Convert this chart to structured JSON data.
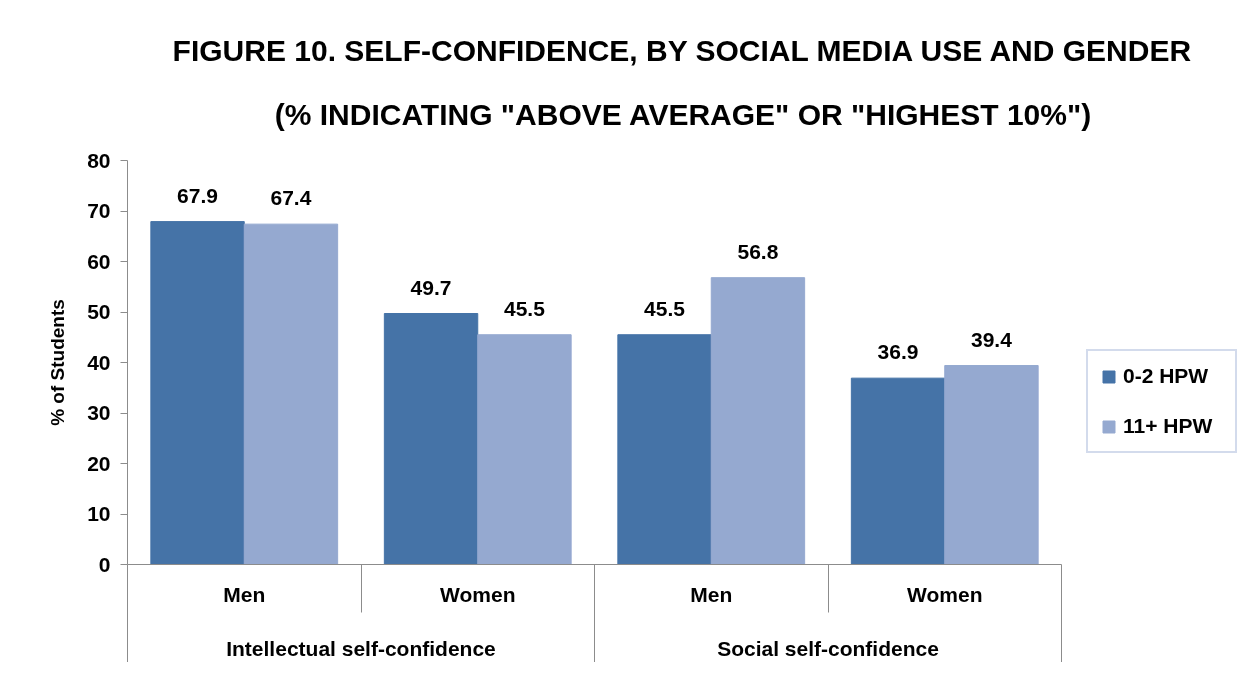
{
  "chart_data": {
    "type": "bar",
    "title": "FIGURE 10. SELF-CONFIDENCE, BY SOCIAL MEDIA USE AND GENDER",
    "subtitle": "(% INDICATING \"ABOVE AVERAGE\" OR \"HIGHEST 10%\")",
    "ylabel": "% of Students",
    "categories": [
      "Men",
      "Women",
      "Men",
      "Women"
    ],
    "annotations": [
      "Intellectual self-confidence",
      "Social self-confidence"
    ],
    "series": [
      {
        "name": "0-2 HPW",
        "color": "#4573a7",
        "values": [
          67.9,
          49.7,
          45.5,
          36.9
        ]
      },
      {
        "name": "11+ HPW",
        "color": "#95a9d0",
        "values": [
          67.4,
          45.5,
          56.8,
          39.4
        ]
      }
    ],
    "ylim": [
      0,
      80
    ],
    "yticks": [
      0,
      10,
      20,
      30,
      40,
      50,
      60,
      70,
      80
    ],
    "grid": false,
    "legend": "right",
    "data_labels": true
  }
}
